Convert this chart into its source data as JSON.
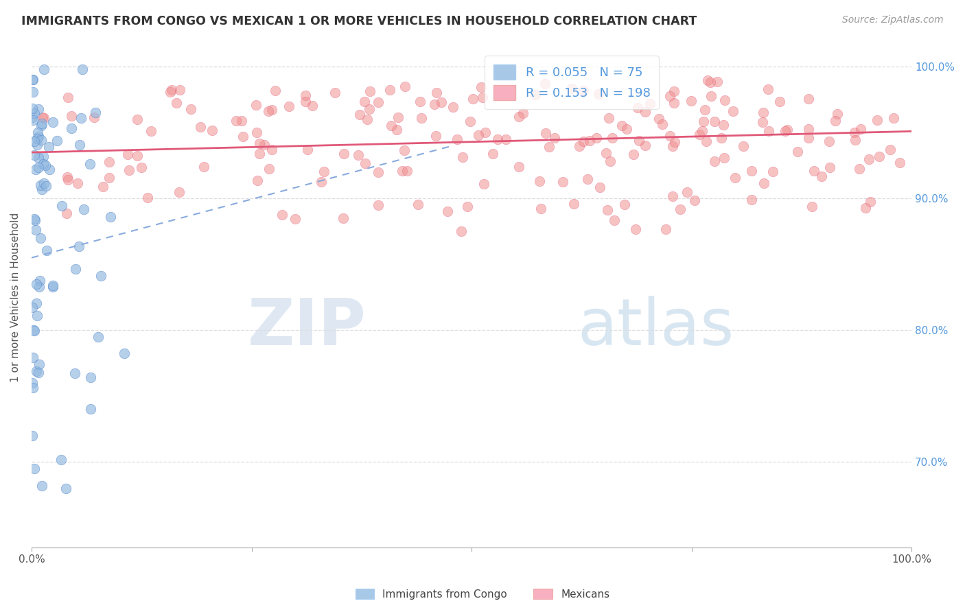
{
  "title": "IMMIGRANTS FROM CONGO VS MEXICAN 1 OR MORE VEHICLES IN HOUSEHOLD CORRELATION CHART",
  "source": "Source: ZipAtlas.com",
  "ylabel": "1 or more Vehicles in Household",
  "watermark_zip": "ZIP",
  "watermark_atlas": "atlas",
  "legend_entries": [
    {
      "label": "Immigrants from Congo",
      "R": "0.055",
      "N": "75",
      "color": "#a8c8e8"
    },
    {
      "label": "Mexicans",
      "R": "0.153",
      "N": "198",
      "color": "#f8b0c0"
    }
  ],
  "congo_scatter_color": "#90b8e0",
  "congo_edge_color": "#5588cc",
  "mexican_scatter_color": "#f09090",
  "mexican_edge_color": "#e06080",
  "congo_trend_color": "#88aadd",
  "mexican_trend_color": "#e05878",
  "background_color": "#ffffff",
  "grid_color": "#dddddd",
  "xlim": [
    0.0,
    1.0
  ],
  "ylim": [
    0.635,
    1.015
  ],
  "right_yticks": [
    0.7,
    0.8,
    0.9,
    1.0
  ],
  "right_ytick_labels": [
    "70.0%",
    "80.0%",
    "90.0%",
    "100.0%"
  ],
  "title_color": "#333333",
  "source_color": "#999999",
  "ylabel_color": "#555555",
  "right_axis_color": "#5599dd",
  "bottom_tick_color": "#555555"
}
